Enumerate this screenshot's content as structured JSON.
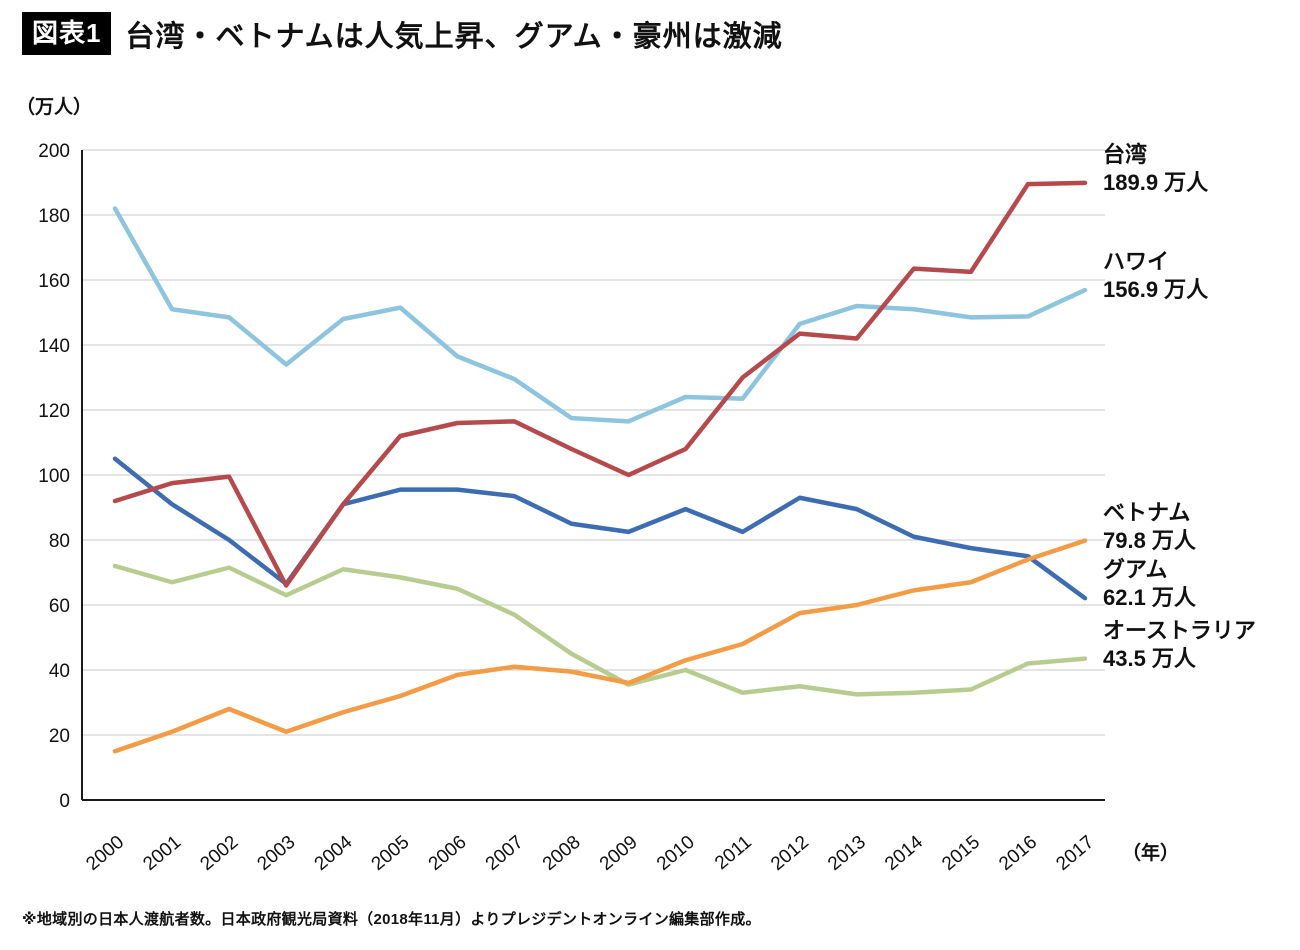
{
  "header": {
    "badge": "図表1",
    "title": "台湾・ベトナムは人気上昇、グアム・豪州は激減"
  },
  "footer": "※地域別の日本人渡航者数。日本政府観光局資料（2018年11月）よりプレジデントオンライン編集部作成。",
  "chart_data": {
    "type": "line",
    "title": "台湾・ベトナムは人気上昇、グアム・豪州は激減",
    "ylabel": "（万人）",
    "xlabel": "（年）",
    "ylim": [
      0,
      200
    ],
    "ytick_step": 20,
    "grid": "horizontal",
    "legend_position": "right-end-labels",
    "x": [
      2000,
      2001,
      2002,
      2003,
      2004,
      2005,
      2006,
      2007,
      2008,
      2009,
      2010,
      2011,
      2012,
      2013,
      2014,
      2015,
      2016,
      2017
    ],
    "series": [
      {
        "name": "ハワイ",
        "key": "hawaii",
        "color": "#8cc5dd",
        "end_label": "156.9 万人",
        "end_value": 156.9,
        "values": [
          182,
          151,
          148.5,
          134,
          148,
          151.5,
          136.5,
          129.5,
          117.5,
          116.5,
          124,
          123.5,
          146.5,
          152,
          151,
          148.5,
          148.8,
          156.9
        ]
      },
      {
        "name": "グアム",
        "key": "guam",
        "color": "#3d6cb3",
        "end_label": "62.1 万人",
        "end_value": 62.1,
        "values": [
          105,
          91,
          80,
          66.5,
          91,
          95.5,
          95.5,
          93.5,
          85,
          82.5,
          89.5,
          82.5,
          93,
          89.5,
          81,
          77.5,
          75,
          62.1
        ]
      },
      {
        "name": "オーストラリア",
        "key": "australia",
        "color": "#b7cd90",
        "end_label": "43.5 万人",
        "end_value": 43.5,
        "values": [
          72,
          67,
          71.5,
          63,
          71,
          68.5,
          65,
          57,
          45,
          35.5,
          40,
          33,
          35,
          32.5,
          33,
          34,
          42,
          43.5
        ]
      },
      {
        "name": "ベトナム",
        "key": "vietnam",
        "color": "#f49b45",
        "end_label": "79.8 万人",
        "end_value": 79.8,
        "values": [
          15,
          21,
          28,
          21,
          27,
          32,
          38.5,
          41,
          39.5,
          36,
          43,
          48,
          57.5,
          60,
          64.5,
          67,
          74,
          79.8
        ]
      },
      {
        "name": "台湾",
        "key": "taiwan",
        "color": "#b5494c",
        "end_label": "189.9 万人",
        "end_value": 189.9,
        "values": [
          92,
          97.5,
          99.5,
          66,
          91,
          112,
          116,
          116.5,
          108,
          100,
          108,
          130,
          143.5,
          142,
          163.5,
          162.5,
          189.5,
          189.9
        ]
      }
    ]
  }
}
